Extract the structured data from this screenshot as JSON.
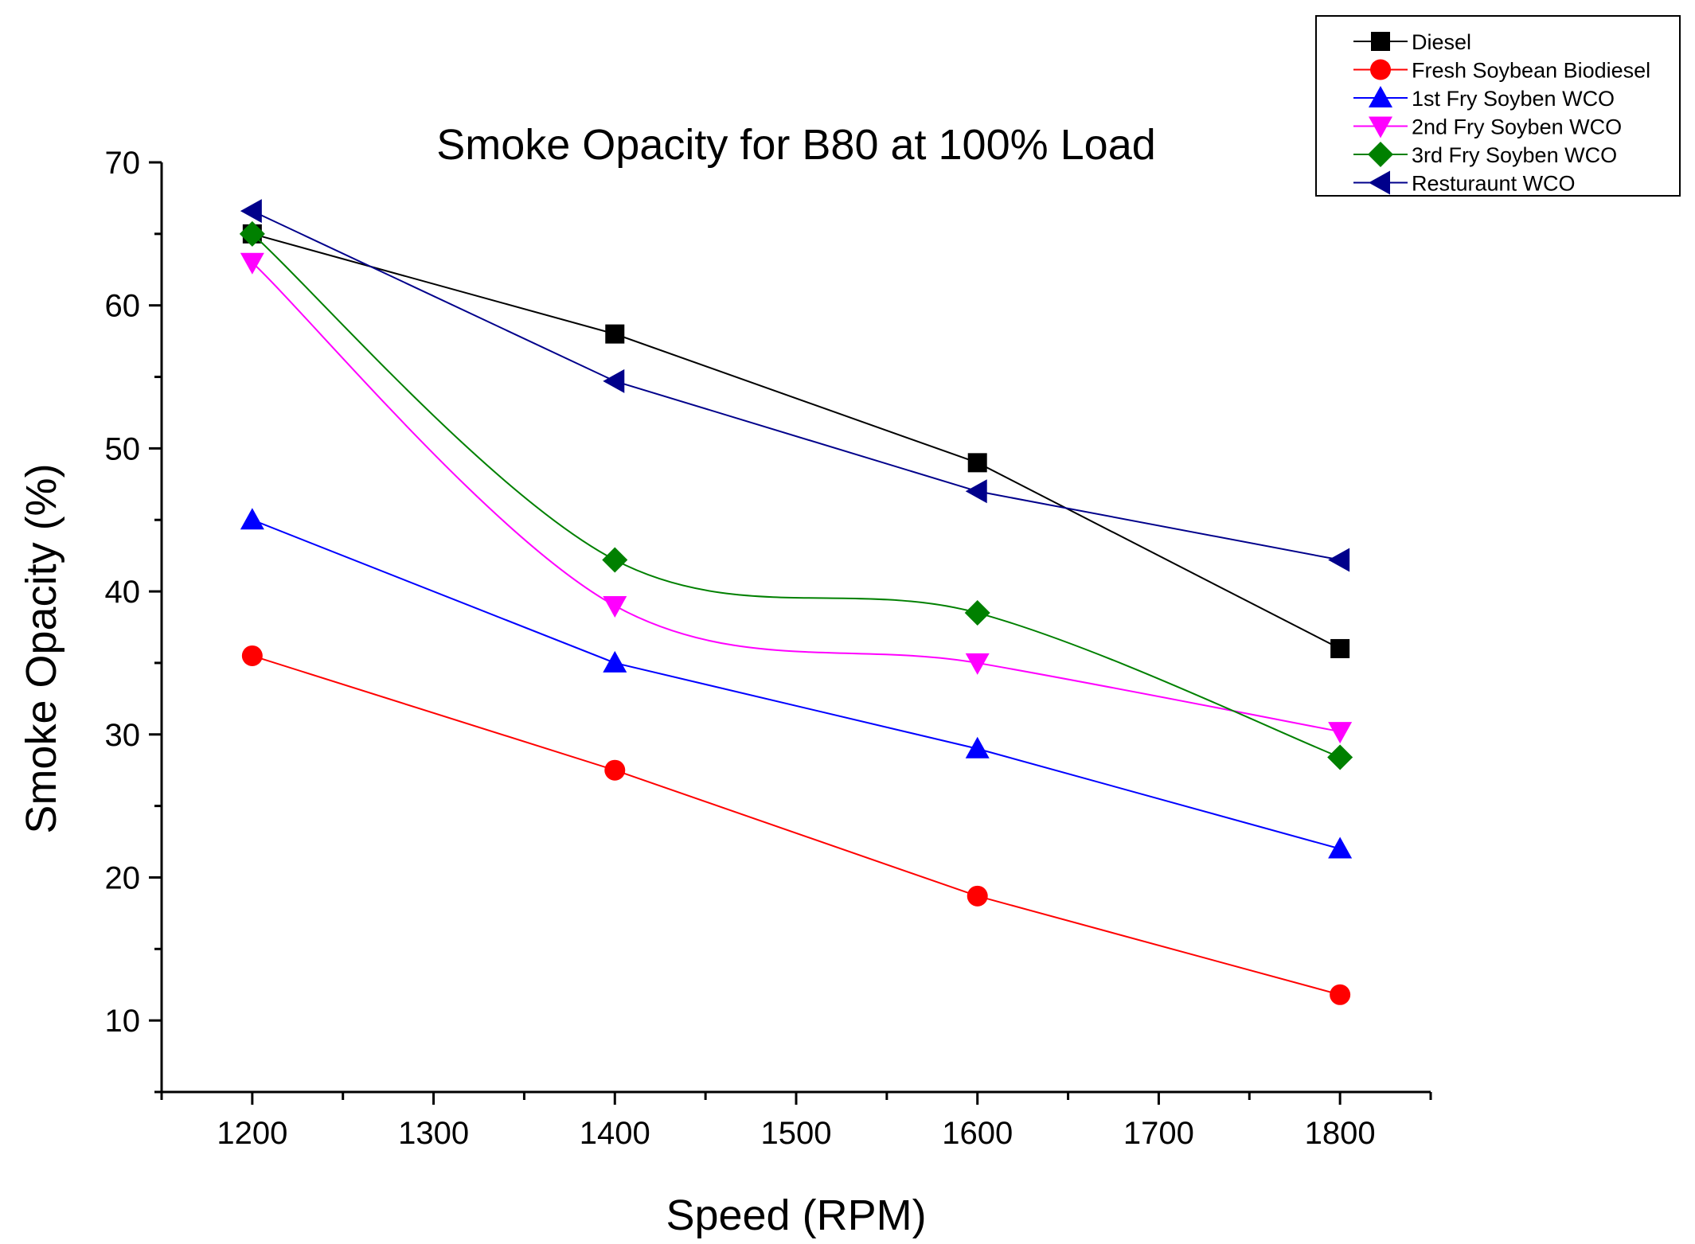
{
  "chart_data": {
    "type": "line",
    "title": "Smoke Opacity for B80 at 100% Load",
    "xlabel": "Speed (RPM)",
    "ylabel": "Smoke Opacity (%)",
    "xlim": [
      1150,
      1850
    ],
    "ylim": [
      5,
      70
    ],
    "xticks": [
      1200,
      1300,
      1400,
      1500,
      1600,
      1700,
      1800
    ],
    "yticks": [
      10,
      20,
      30,
      40,
      50,
      60,
      70
    ],
    "grid": false,
    "legend_position": "top-right",
    "x": [
      1200,
      1400,
      1600,
      1800
    ],
    "series": [
      {
        "name": "Diesel",
        "values": [
          65,
          58,
          49,
          36
        ],
        "color": "#000000",
        "marker": "square",
        "smooth": false
      },
      {
        "name": "Fresh Soybean Biodiesel",
        "values": [
          35.5,
          27.5,
          18.7,
          11.8
        ],
        "color": "#ff0000",
        "marker": "circle",
        "smooth": false
      },
      {
        "name": "1st Fry Soyben WCO",
        "values": [
          45,
          35,
          29,
          22
        ],
        "color": "#0000ff",
        "marker": "triangle-up",
        "smooth": false
      },
      {
        "name": "2nd Fry Soyben WCO",
        "values": [
          63,
          39,
          35,
          30.2
        ],
        "color": "#ff00ff",
        "marker": "triangle-down",
        "smooth": true
      },
      {
        "name": "3rd Fry Soyben WCO",
        "values": [
          65,
          42.2,
          38.5,
          28.4
        ],
        "color": "#008000",
        "marker": "diamond",
        "smooth": true
      },
      {
        "name": "Resturaunt WCO",
        "values": [
          66.6,
          54.7,
          47,
          42.2
        ],
        "color": "#00008b",
        "marker": "triangle-left",
        "smooth": false
      }
    ]
  }
}
